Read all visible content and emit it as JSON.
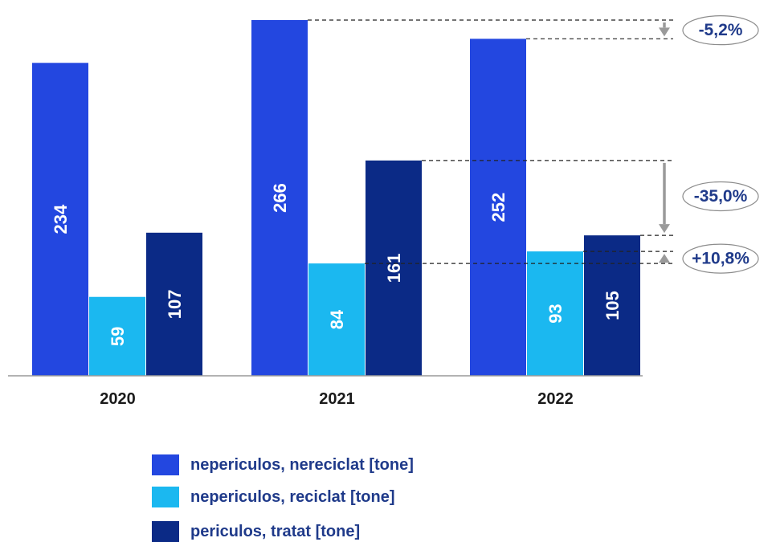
{
  "chart_data": {
    "type": "bar",
    "categories": [
      "2020",
      "2021",
      "2022"
    ],
    "series": [
      {
        "name": "nepericulos, nereciclat [tone]",
        "color": "#2347e0",
        "values": [
          234,
          266,
          252
        ]
      },
      {
        "name": "nepericulos, reciclat [tone]",
        "color": "#1bb8f0",
        "values": [
          59,
          84,
          93
        ]
      },
      {
        "name": "periculos, tratat [tone]",
        "color": "#0b2a86",
        "values": [
          107,
          161,
          105
        ]
      }
    ],
    "ylim": [
      0,
      266
    ],
    "annotations": [
      {
        "series": 0,
        "from_category": "2021",
        "to_category": "2022",
        "label": "-5,2%",
        "direction": "down"
      },
      {
        "series": 2,
        "from_category": "2021",
        "to_category": "2022",
        "label": "-35,0%",
        "direction": "down"
      },
      {
        "series": 1,
        "from_category": "2021",
        "to_category": "2022",
        "label": "+10,8%",
        "direction": "up"
      }
    ],
    "legend_position": "bottom",
    "grid": false
  }
}
